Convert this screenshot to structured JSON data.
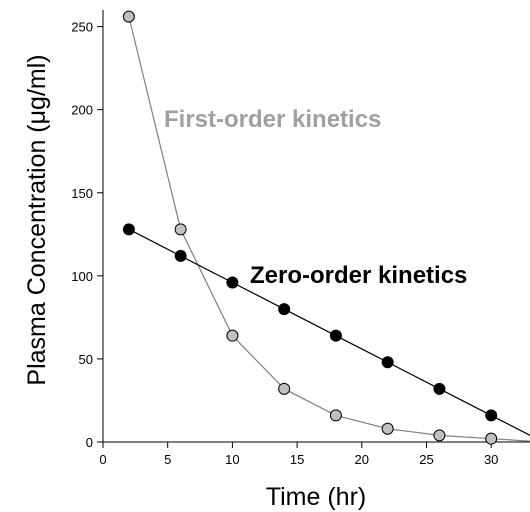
{
  "chart_data": {
    "type": "line",
    "xlabel": "Time (hr)",
    "ylabel": "Plasma Concentration (μg/ml)",
    "xlim": [
      0,
      33
    ],
    "ylim": [
      0,
      260
    ],
    "xticks": [
      "0",
      "5",
      "10",
      "15",
      "20",
      "25",
      "30"
    ],
    "yticks": [
      "0",
      "50",
      "100",
      "150",
      "200",
      "250"
    ],
    "grid": false,
    "legend": "none",
    "series": [
      {
        "label": "First-order kinetics",
        "color": "#a0a0a0",
        "marker_fill": "#c0c0c0",
        "x": [
          2,
          6,
          10,
          14,
          18,
          22,
          26,
          30,
          34
        ],
        "y": [
          256,
          128,
          64,
          32,
          16,
          8,
          4,
          2,
          0
        ]
      },
      {
        "label": "Zero-order kinetics",
        "color": "#000000",
        "marker_fill": "#000000",
        "x": [
          2,
          6,
          10,
          14,
          18,
          22,
          26,
          30,
          34
        ],
        "y": [
          128,
          112,
          96,
          80,
          64,
          48,
          32,
          16,
          0
        ]
      }
    ]
  }
}
